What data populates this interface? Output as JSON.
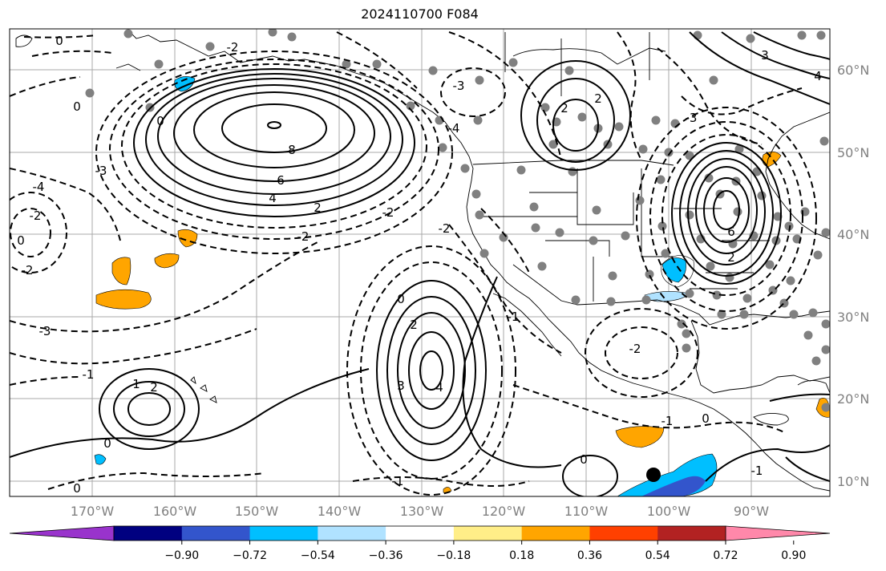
{
  "title": "2024110700 F084",
  "longitude_labels": [
    "170°W",
    "160°W",
    "150°W",
    "140°W",
    "130°W",
    "120°W",
    "110°W",
    "100°W",
    "90°W"
  ],
  "latitude_labels": [
    "60°N",
    "50°N",
    "40°N",
    "30°N",
    "20°N",
    "10°N"
  ],
  "colorbar": {
    "ticks": [
      "−0.90",
      "−0.72",
      "−0.54",
      "−0.36",
      "−0.18",
      "0.18",
      "0.36",
      "0.54",
      "0.72",
      "0.90"
    ],
    "colors": [
      "#9933cc",
      "#000080",
      "#3355cc",
      "#00bfff",
      "#b0e2ff",
      "#ffffff",
      "#ffee88",
      "#ffa500",
      "#ff4000",
      "#b22222",
      "#ff88aa"
    ]
  },
  "contour_labels": [
    {
      "text": "0"
    },
    {
      "text": "0"
    },
    {
      "text": "-2"
    },
    {
      "text": "0"
    },
    {
      "text": "8"
    },
    {
      "text": "6"
    },
    {
      "text": "4"
    },
    {
      "text": "2"
    },
    {
      "text": "-2"
    },
    {
      "text": "-4"
    },
    {
      "text": "-2"
    },
    {
      "text": "0"
    },
    {
      "text": "-2"
    },
    {
      "text": "-3"
    },
    {
      "text": "-1"
    },
    {
      "text": "1"
    },
    {
      "text": "2"
    },
    {
      "text": "0"
    },
    {
      "text": "2"
    },
    {
      "text": "3"
    },
    {
      "text": "4"
    },
    {
      "text": "0"
    },
    {
      "text": "-2"
    },
    {
      "text": "2"
    },
    {
      "text": "-3"
    },
    {
      "text": "6"
    },
    {
      "text": "2"
    },
    {
      "text": "-2"
    },
    {
      "text": "-1"
    },
    {
      "text": "0"
    },
    {
      "text": "0"
    },
    {
      "text": "-1"
    },
    {
      "text": "2"
    },
    {
      "text": "-3"
    },
    {
      "text": "-4"
    },
    {
      "text": "-3"
    },
    {
      "text": "-2"
    },
    {
      "text": "-1"
    },
    {
      "text": "0"
    },
    {
      "text": "-1"
    },
    {
      "text": "3"
    },
    {
      "text": "4"
    }
  ]
}
